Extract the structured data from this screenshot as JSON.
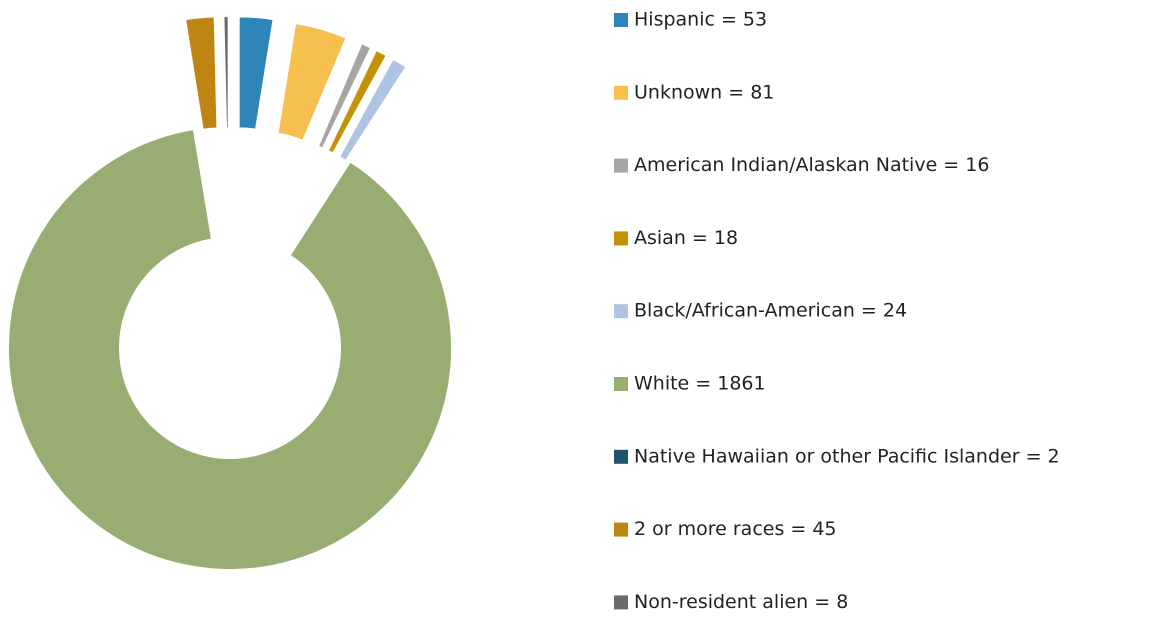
{
  "chart_data": {
    "type": "donut",
    "categories": [
      "Hispanic = 53",
      "Unknown = 81",
      "American Indian/Alaskan Native = 16",
      "Asian = 18",
      "Black/African-American = 24",
      "White = 1861",
      "Native Hawaiian or other Pacific Islander = 2",
      "2 or more races = 45",
      "Non-resident alien = 8"
    ],
    "values": [
      53,
      81,
      16,
      18,
      24,
      1861,
      2,
      45,
      8
    ],
    "colors": [
      "#2e86b8",
      "#f6c04f",
      "#a5a5a5",
      "#c49206",
      "#aec4e0",
      "#98ad72",
      "#1f5470",
      "#be8512",
      "#6b6b6b"
    ],
    "exploded": [
      true,
      true,
      true,
      true,
      true,
      false,
      true,
      true,
      true
    ],
    "legend": "right"
  }
}
